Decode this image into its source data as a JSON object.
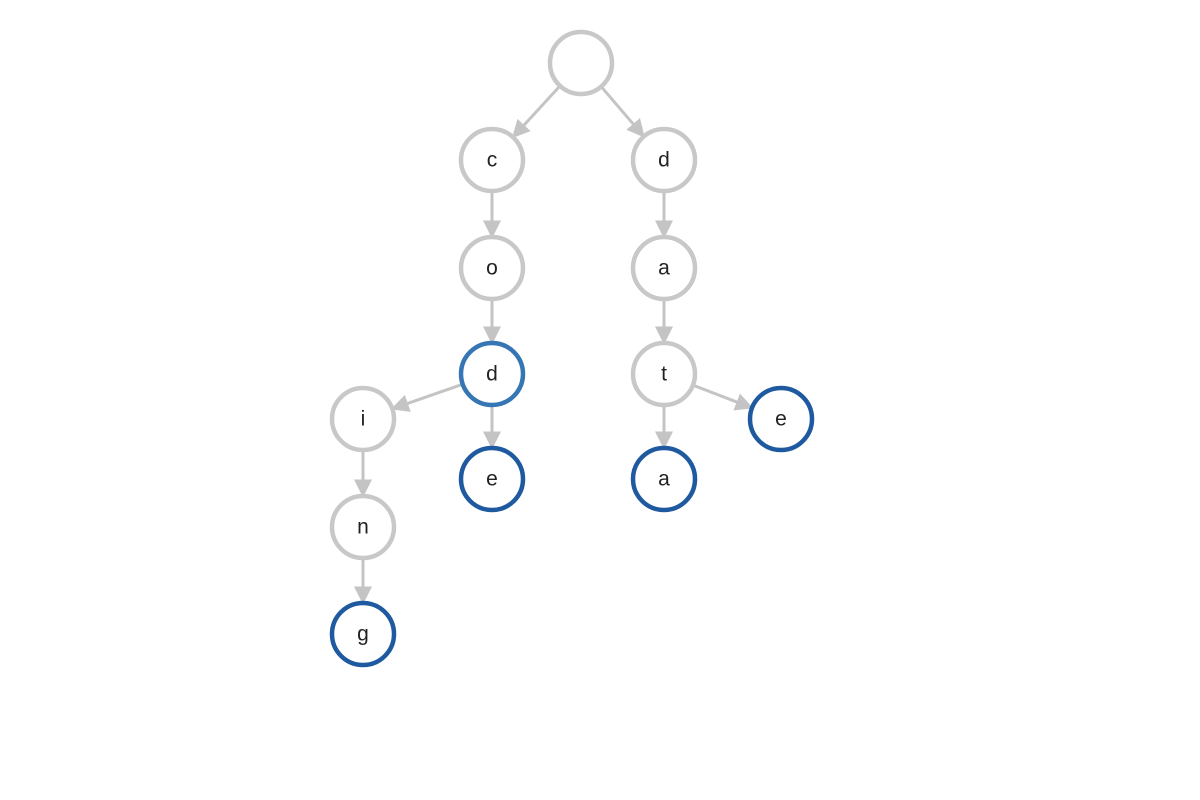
{
  "colors": {
    "default_node": "#c8c8c8",
    "end_node": "#1f5aa0",
    "highlight_node": "#3676b4",
    "edge": "#c4c4c4"
  },
  "nodes": [
    {
      "id": "root",
      "label": "",
      "state": "default"
    },
    {
      "id": "c",
      "label": "c",
      "state": "default"
    },
    {
      "id": "d1",
      "label": "d",
      "state": "default"
    },
    {
      "id": "o",
      "label": "o",
      "state": "default"
    },
    {
      "id": "a1",
      "label": "a",
      "state": "default"
    },
    {
      "id": "d2",
      "label": "d",
      "state": "highlight"
    },
    {
      "id": "t",
      "label": "t",
      "state": "default"
    },
    {
      "id": "i",
      "label": "i",
      "state": "default"
    },
    {
      "id": "e1",
      "label": "e",
      "state": "end"
    },
    {
      "id": "a2",
      "label": "a",
      "state": "end"
    },
    {
      "id": "e2",
      "label": "e",
      "state": "end"
    },
    {
      "id": "n",
      "label": "n",
      "state": "default"
    },
    {
      "id": "g",
      "label": "g",
      "state": "end"
    }
  ],
  "edges": [
    {
      "from": "root",
      "to": "c"
    },
    {
      "from": "root",
      "to": "d1"
    },
    {
      "from": "c",
      "to": "o"
    },
    {
      "from": "o",
      "to": "d2"
    },
    {
      "from": "d2",
      "to": "i"
    },
    {
      "from": "d2",
      "to": "e1"
    },
    {
      "from": "i",
      "to": "n"
    },
    {
      "from": "n",
      "to": "g"
    },
    {
      "from": "d1",
      "to": "a1"
    },
    {
      "from": "a1",
      "to": "t"
    },
    {
      "from": "t",
      "to": "a2"
    },
    {
      "from": "t",
      "to": "e2"
    }
  ]
}
